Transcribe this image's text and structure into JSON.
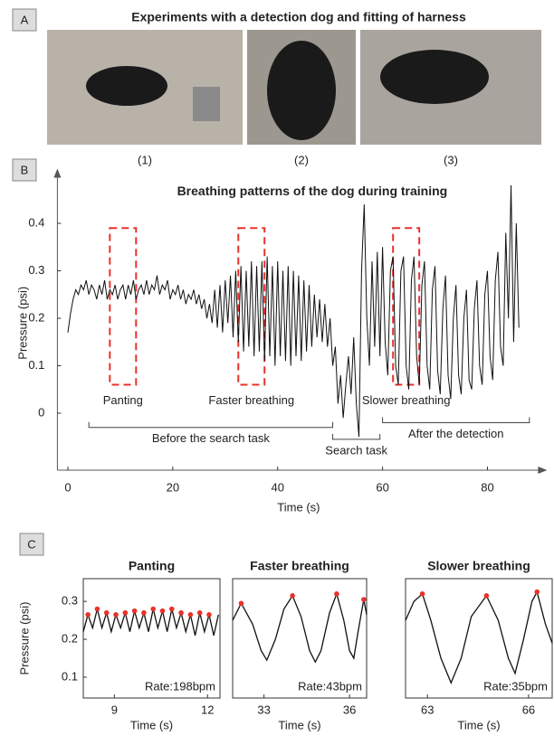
{
  "panel_labels": [
    "A",
    "B",
    "C"
  ],
  "photo_title": "Experiments with a detection dog and fitting of harness",
  "photo_captions": [
    "(1)",
    "(2)",
    "(3)"
  ],
  "chart_data": [
    {
      "type": "line",
      "title": "Breathing patterns of the dog during training",
      "xlabel": "Time (s)",
      "ylabel": "Pressure (psi)",
      "xlim": [
        -2,
        90
      ],
      "ylim": [
        -0.12,
        0.5
      ],
      "xticks": [
        0,
        20,
        40,
        60,
        80
      ],
      "yticks": [
        0,
        0.1,
        0.2,
        0.3,
        0.4
      ],
      "series": [
        {
          "color": "#111111",
          "x": [
            0,
            0.5,
            1,
            1.5,
            2,
            2.5,
            3,
            3.5,
            4,
            4.5,
            5,
            5.5,
            6,
            6.5,
            7,
            7.5,
            8,
            8.5,
            9,
            9.5,
            10,
            10.5,
            11,
            11.5,
            12,
            12.5,
            13,
            13.5,
            14,
            14.5,
            15,
            15.5,
            16,
            16.5,
            17,
            17.5,
            18,
            18.5,
            19,
            19.5,
            20,
            20.5,
            21,
            21.5,
            22,
            22.5,
            23,
            23.5,
            24,
            24.5,
            25,
            25.5,
            26,
            26.5,
            27,
            27.5,
            28,
            28.5,
            29,
            29.5,
            30,
            30.5,
            31,
            31.5,
            32,
            32.5,
            33,
            33.5,
            34,
            34.5,
            35,
            35.5,
            36,
            36.5,
            37,
            37.5,
            38,
            38.5,
            39,
            39.5,
            40,
            40.5,
            41,
            41.5,
            42,
            42.5,
            43,
            43.5,
            44,
            44.5,
            45,
            45.5,
            46,
            46.5,
            47,
            47.5,
            48,
            48.5,
            49,
            49.5,
            50,
            50.5,
            51,
            51.5,
            52,
            52.5,
            53,
            53.5,
            54,
            54.5,
            55,
            55.5,
            56,
            56.5,
            57,
            57.5,
            58,
            58.5,
            59,
            59.5,
            60,
            60.5,
            61,
            61.5,
            62,
            62.5,
            63,
            63.5,
            64,
            64.5,
            65,
            65.5,
            66,
            66.5,
            67,
            67.5,
            68,
            68.5,
            69,
            69.5,
            70,
            70.5,
            71,
            71.5,
            72,
            72.5,
            73,
            73.5,
            74,
            74.5,
            75,
            75.5,
            76,
            76.5,
            77,
            77.5,
            78,
            78.5,
            79,
            79.5,
            80,
            80.5,
            81,
            81.5,
            82,
            82.5,
            83,
            83.5,
            84,
            84.5,
            85,
            85.5,
            86
          ],
          "values": [
            0.17,
            0.21,
            0.24,
            0.26,
            0.25,
            0.27,
            0.26,
            0.28,
            0.25,
            0.27,
            0.26,
            0.24,
            0.27,
            0.25,
            0.28,
            0.24,
            0.26,
            0.25,
            0.27,
            0.24,
            0.26,
            0.27,
            0.24,
            0.27,
            0.25,
            0.28,
            0.24,
            0.26,
            0.27,
            0.25,
            0.28,
            0.25,
            0.27,
            0.26,
            0.29,
            0.25,
            0.27,
            0.26,
            0.28,
            0.24,
            0.26,
            0.25,
            0.27,
            0.24,
            0.26,
            0.23,
            0.25,
            0.24,
            0.26,
            0.23,
            0.25,
            0.22,
            0.24,
            0.2,
            0.23,
            0.19,
            0.26,
            0.18,
            0.27,
            0.17,
            0.28,
            0.19,
            0.29,
            0.16,
            0.3,
            0.15,
            0.31,
            0.13,
            0.3,
            0.14,
            0.32,
            0.12,
            0.31,
            0.13,
            0.32,
            0.11,
            0.33,
            0.12,
            0.31,
            0.1,
            0.32,
            0.12,
            0.3,
            0.11,
            0.31,
            0.1,
            0.3,
            0.12,
            0.29,
            0.11,
            0.28,
            0.13,
            0.27,
            0.14,
            0.25,
            0.16,
            0.24,
            0.15,
            0.23,
            0.14,
            0.2,
            0.1,
            0.14,
            0.02,
            0.08,
            -0.01,
            0.06,
            0.12,
            0.04,
            0.16,
            0.02,
            -0.05,
            0.3,
            0.44,
            0.2,
            0.1,
            0.32,
            0.14,
            0.34,
            0.12,
            0.35,
            0.15,
            0.08,
            0.3,
            0.33,
            0.1,
            0.06,
            0.3,
            0.33,
            0.1,
            0.05,
            0.28,
            0.33,
            0.12,
            0.06,
            0.27,
            0.32,
            0.1,
            0.05,
            0.26,
            0.31,
            0.09,
            0.04,
            0.22,
            0.29,
            0.08,
            0.03,
            0.2,
            0.27,
            0.08,
            0.04,
            0.2,
            0.26,
            0.07,
            0.05,
            0.22,
            0.28,
            0.1,
            0.06,
            0.25,
            0.3,
            0.12,
            0.07,
            0.28,
            0.34,
            0.14,
            0.1,
            0.38,
            0.2,
            0.48,
            0.15,
            0.4,
            0.18
          ]
        }
      ],
      "highlight_color": "#e8322a",
      "highlights": [
        {
          "label": "Panting",
          "x": [
            8,
            13
          ],
          "y": [
            0.06,
            0.39
          ]
        },
        {
          "label": "Faster breathing",
          "x": [
            32.5,
            37.5
          ],
          "y": [
            0.06,
            0.39
          ]
        },
        {
          "label": "Slower breathing",
          "x": [
            62,
            67
          ],
          "y": [
            0.06,
            0.39
          ]
        }
      ],
      "brackets": [
        {
          "label": "Before the search task",
          "x": [
            4,
            50.5
          ],
          "y": -0.03
        },
        {
          "label": "Search task",
          "x": [
            50.5,
            59.5
          ],
          "y": -0.055
        },
        {
          "label": "After the detection",
          "x": [
            60,
            88
          ],
          "y": -0.02
        }
      ]
    },
    {
      "type": "line",
      "title": "Panting",
      "xlabel": "Time (s)",
      "ylabel": "Pressure (psi)",
      "xlim": [
        8,
        12.4
      ],
      "ylim": [
        0.045,
        0.36
      ],
      "xticks": [
        9,
        12
      ],
      "yticks": [
        0.1,
        0.2,
        0.3
      ],
      "rate_label": "Rate:198bpm",
      "series": [
        {
          "color": "#111111",
          "x": [
            8.0,
            8.15,
            8.3,
            8.45,
            8.6,
            8.75,
            8.9,
            9.05,
            9.2,
            9.35,
            9.5,
            9.65,
            9.8,
            9.95,
            10.1,
            10.25,
            10.4,
            10.55,
            10.7,
            10.85,
            11.0,
            11.15,
            11.3,
            11.45,
            11.6,
            11.75,
            11.9,
            12.05,
            12.2,
            12.35
          ],
          "values": [
            0.22,
            0.265,
            0.23,
            0.28,
            0.23,
            0.27,
            0.22,
            0.265,
            0.23,
            0.27,
            0.22,
            0.275,
            0.23,
            0.27,
            0.22,
            0.28,
            0.23,
            0.275,
            0.22,
            0.28,
            0.23,
            0.27,
            0.22,
            0.265,
            0.21,
            0.27,
            0.22,
            0.265,
            0.21,
            0.265
          ]
        }
      ],
      "peaks": {
        "color": "#e8322a",
        "x": [
          8.15,
          8.45,
          8.75,
          9.05,
          9.35,
          9.65,
          9.95,
          10.25,
          10.55,
          10.85,
          11.15,
          11.45,
          11.75,
          12.05
        ],
        "y": [
          0.265,
          0.28,
          0.27,
          0.265,
          0.27,
          0.275,
          0.27,
          0.28,
          0.275,
          0.28,
          0.27,
          0.265,
          0.27,
          0.265
        ]
      }
    },
    {
      "type": "line",
      "title": "Faster breathing",
      "xlabel": "Time (s)",
      "xlim": [
        31.9,
        36.6
      ],
      "ylim": [
        0.045,
        0.36
      ],
      "xticks": [
        33,
        36
      ],
      "rate_label": "Rate:43bpm",
      "series": [
        {
          "color": "#111111",
          "x": [
            31.9,
            32.2,
            32.6,
            32.9,
            33.1,
            33.4,
            33.7,
            34.0,
            34.3,
            34.6,
            34.8,
            35.0,
            35.3,
            35.55,
            35.8,
            36.0,
            36.15,
            36.3,
            36.5,
            36.6
          ],
          "values": [
            0.25,
            0.295,
            0.24,
            0.17,
            0.145,
            0.2,
            0.28,
            0.315,
            0.26,
            0.17,
            0.14,
            0.17,
            0.27,
            0.32,
            0.25,
            0.17,
            0.15,
            0.22,
            0.305,
            0.265
          ]
        }
      ],
      "peaks": {
        "color": "#e8322a",
        "x": [
          32.2,
          34.0,
          35.55,
          36.5
        ],
        "y": [
          0.295,
          0.315,
          0.32,
          0.305
        ]
      }
    },
    {
      "type": "line",
      "title": "Slower breathing",
      "xlabel": "Time (s)",
      "xlim": [
        62.35,
        66.7
      ],
      "ylim": [
        0.045,
        0.36
      ],
      "xticks": [
        63,
        66
      ],
      "rate_label": "Rate:35bpm",
      "series": [
        {
          "color": "#111111",
          "x": [
            62.35,
            62.6,
            62.85,
            63.1,
            63.4,
            63.7,
            64.0,
            64.3,
            64.75,
            65.1,
            65.4,
            65.6,
            65.85,
            66.1,
            66.25,
            66.5,
            66.7
          ],
          "values": [
            0.25,
            0.3,
            0.32,
            0.25,
            0.15,
            0.085,
            0.15,
            0.26,
            0.315,
            0.25,
            0.15,
            0.11,
            0.2,
            0.3,
            0.325,
            0.24,
            0.19
          ]
        }
      ],
      "peaks": {
        "color": "#e8322a",
        "x": [
          62.85,
          64.75,
          66.25
        ],
        "y": [
          0.32,
          0.315,
          0.325
        ]
      }
    }
  ]
}
